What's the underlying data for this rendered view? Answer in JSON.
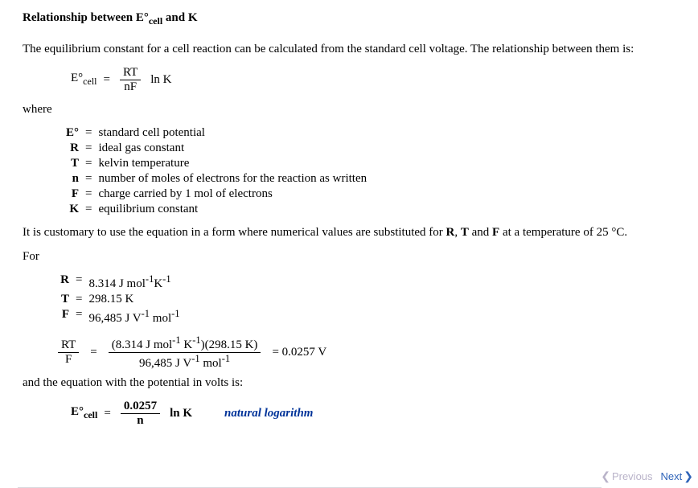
{
  "title_prefix": "Relationship between E°",
  "title_sub": "cell",
  "title_suffix": " and K",
  "intro": "The equilibrium constant for a cell reaction can be calculated from the standard cell voltage. The relationship between them is:",
  "eq1": {
    "lhs_prefix": "E°",
    "lhs_sub": "cell",
    "equals": "=",
    "num": "RT",
    "den": "nF",
    "rhs": "ln K"
  },
  "where_label": "where",
  "defs1": [
    {
      "sym": "E°",
      "desc": "standard cell potential"
    },
    {
      "sym": "R",
      "desc": "ideal gas constant"
    },
    {
      "sym": "T",
      "desc": "kelvin temperature"
    },
    {
      "sym": "n",
      "desc": "number of moles of electrons for the reaction as written"
    },
    {
      "sym": "F",
      "desc": "charge carried by 1 mol of electrons"
    },
    {
      "sym": "K",
      "desc": "equilibrium constant"
    }
  ],
  "customary": "It is customary to use the equation in a form where numerical values are substituted for R, T and F at a temperature of 25 °C.",
  "customary_bold": [
    "R",
    "T",
    "F"
  ],
  "for_label": "For",
  "defs2": [
    {
      "sym": "R",
      "desc_html": "8.314 J mol<sup>-1</sup>K<sup>-1</sup>"
    },
    {
      "sym": "T",
      "desc_html": "298.15 K"
    },
    {
      "sym": "F",
      "desc_html": "96,485 J V<sup>-1</sup> mol<sup>-1</sup>"
    }
  ],
  "calc": {
    "lhs_num": "RT",
    "lhs_den": "F",
    "equals": "=",
    "rhs_num_html": "(8.314 J mol<sup>-1</sup> K<sup>-1</sup>)(298.15 K)",
    "rhs_den_html": "96,485 J V<sup>-1</sup> mol<sup>-1</sup>",
    "result": "= 0.0257 V"
  },
  "and_line": "and the equation with the potential in volts is:",
  "eq2": {
    "lhs_prefix": "E°",
    "lhs_sub": "cell",
    "equals": "=",
    "num": "0.0257",
    "den": "n",
    "rhs": "ln K",
    "note": "natural logarithm"
  },
  "nav": {
    "prev": "Previous",
    "next": "Next"
  }
}
